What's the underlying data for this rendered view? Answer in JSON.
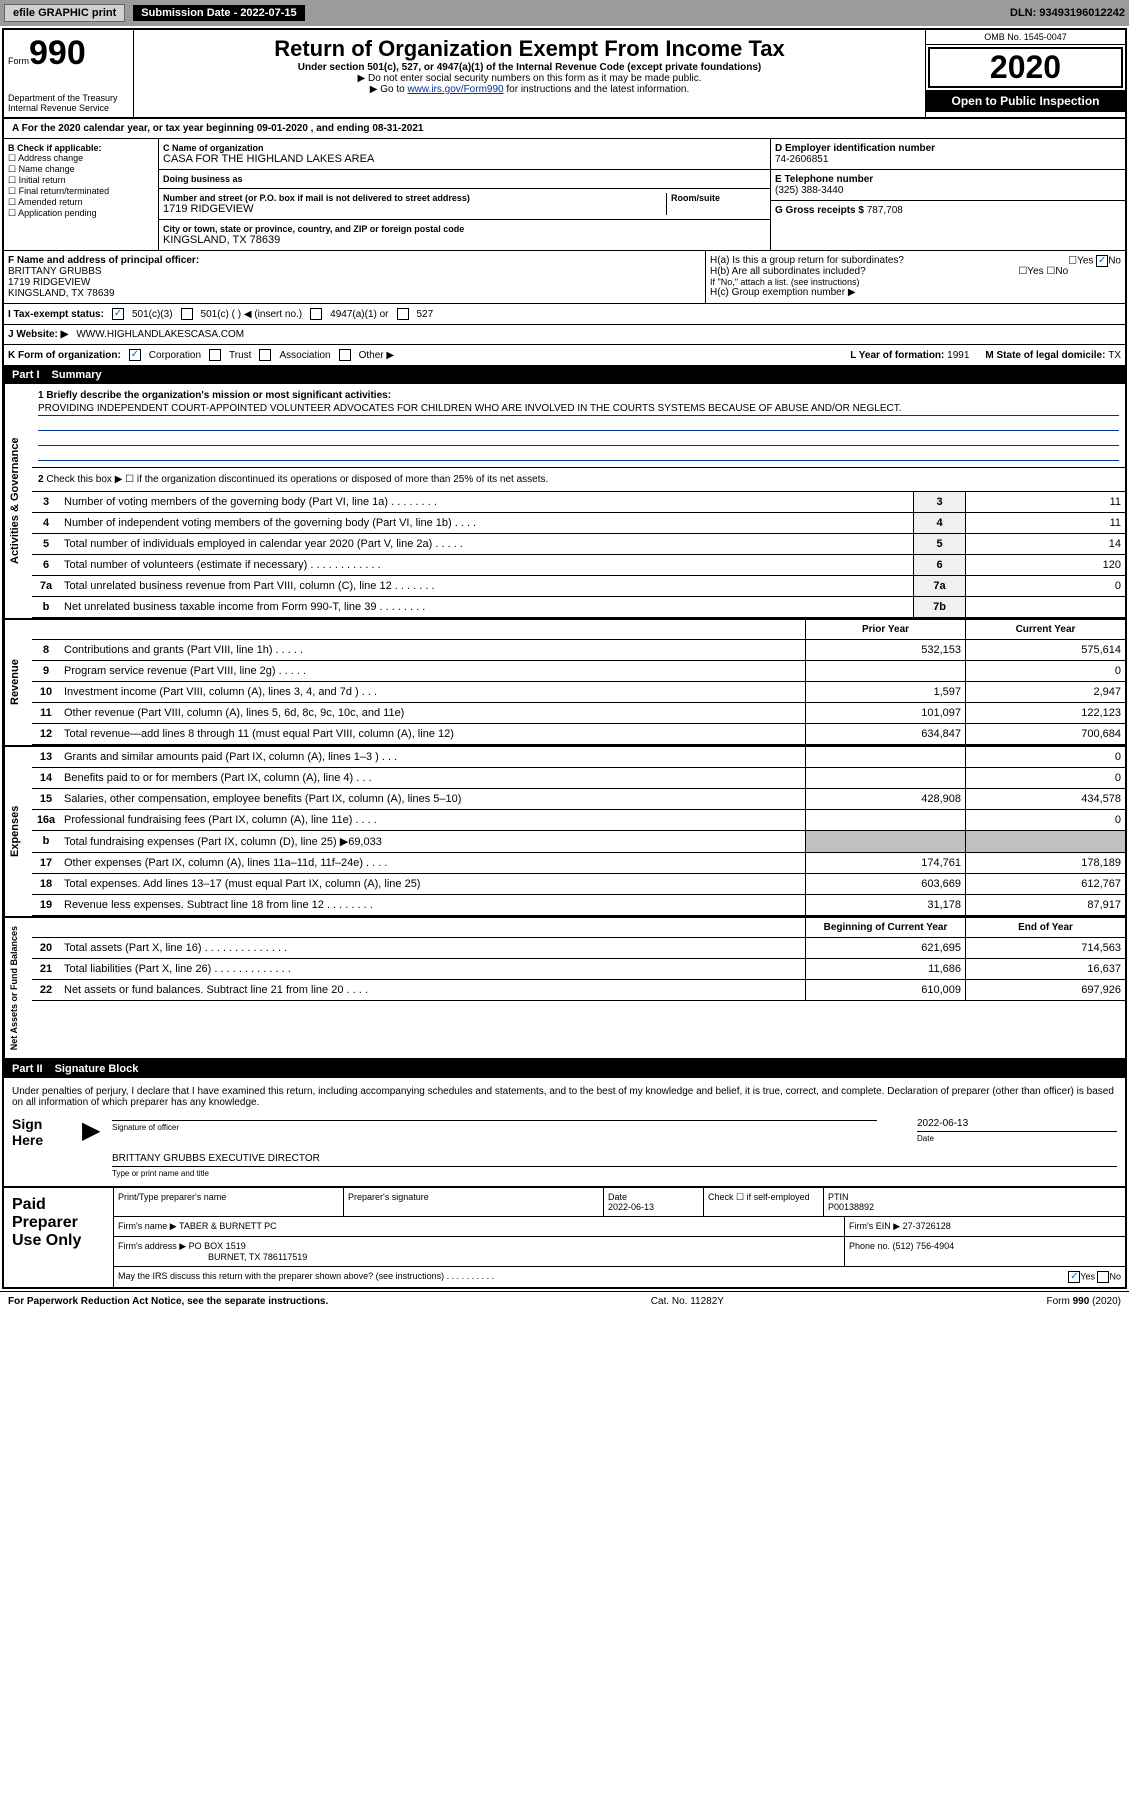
{
  "top": {
    "efile": "efile GRAPHIC print",
    "submission_label": "Submission Date - 2022-07-15",
    "dln": "DLN: 93493196012242"
  },
  "header": {
    "form_prefix": "Form",
    "form_no": "990",
    "dept": "Department of the Treasury\nInternal Revenue Service",
    "title": "Return of Organization Exempt From Income Tax",
    "subtitle": "Under section 501(c), 527, or 4947(a)(1) of the Internal Revenue Code (except private foundations)",
    "note1": "▶ Do not enter social security numbers on this form as it may be made public.",
    "note2_prefix": "▶ Go to ",
    "note2_link": "www.irs.gov/Form990",
    "note2_suffix": " for instructions and the latest information.",
    "omb": "OMB No. 1545-0047",
    "year": "2020",
    "open": "Open to Public Inspection"
  },
  "period": "A For the 2020 calendar year, or tax year beginning 09-01-2020    , and ending 08-31-2021",
  "section_b": {
    "label": "B Check if applicable:",
    "opts": [
      "Address change",
      "Name change",
      "Initial return",
      "Final return/terminated",
      "Amended return",
      "Application pending"
    ]
  },
  "section_c": {
    "name_label": "C Name of organization",
    "name": "CASA FOR THE HIGHLAND LAKES AREA",
    "dba_label": "Doing business as",
    "dba": "",
    "street_label": "Number and street (or P.O. box if mail is not delivered to street address)",
    "room_label": "Room/suite",
    "street": "1719 RIDGEVIEW",
    "city_label": "City or town, state or province, country, and ZIP or foreign postal code",
    "city": "KINGSLAND, TX  78639"
  },
  "section_d": {
    "ein_label": "D Employer identification number",
    "ein": "74-2606851",
    "phone_label": "E Telephone number",
    "phone": "(325) 388-3440",
    "gross_label": "G Gross receipts $ ",
    "gross": "787,708"
  },
  "section_f": {
    "label": "F  Name and address of principal officer:",
    "name": "BRITTANY GRUBBS",
    "addr1": "1719 RIDGEVIEW",
    "addr2": "KINGSLAND, TX  78639"
  },
  "section_h": {
    "ha": "H(a)  Is this a group return for subordinates?",
    "hb": "H(b)  Are all subordinates included?",
    "hb_note": "If \"No,\" attach a list. (see instructions)",
    "hc": "H(c)  Group exemption number ▶"
  },
  "tax_status_label": "I  Tax-exempt status:",
  "tax_501c3": "501(c)(3)",
  "tax_501c": "501(c) (  ) ◀ (insert no.)",
  "tax_4947": "4947(a)(1) or",
  "tax_527": "527",
  "website_label": "J  Website: ▶",
  "website": "WWW.HIGHLANDLAKESCASA.COM",
  "k_label": "K Form of organization:",
  "k_opts": [
    "Corporation",
    "Trust",
    "Association",
    "Other ▶"
  ],
  "l_label": "L Year of formation: ",
  "l_val": "1991",
  "m_label": "M State of legal domicile: ",
  "m_val": "TX",
  "part1": {
    "num": "Part I",
    "title": "Summary",
    "q1": "1  Briefly describe the organization's mission or most significant activities:",
    "q1_text": "PROVIDING INDEPENDENT COURT-APPOINTED VOLUNTEER ADVOCATES FOR CHILDREN WHO ARE INVOLVED IN THE COURTS SYSTEMS BECAUSE OF ABUSE AND/OR NEGLECT.",
    "q2": "Check this box ▶ ☐  if the organization discontinued its operations or disposed of more than 25% of its net assets.",
    "side_ag": "Activities & Governance",
    "side_rev": "Revenue",
    "side_exp": "Expenses",
    "side_net": "Net Assets or Fund Balances",
    "rows_ag": [
      {
        "n": "3",
        "t": "Number of voting members of the governing body (Part VI, line 1a)   .   .   .   .   .   .   .   .",
        "box": "3",
        "val": "11"
      },
      {
        "n": "4",
        "t": "Number of independent voting members of the governing body (Part VI, line 1b)   .   .   .   .",
        "box": "4",
        "val": "11"
      },
      {
        "n": "5",
        "t": "Total number of individuals employed in calendar year 2020 (Part V, line 2a)   .   .   .   .   .",
        "box": "5",
        "val": "14"
      },
      {
        "n": "6",
        "t": "Total number of volunteers (estimate if necessary)   .   .   .   .   .   .   .   .   .   .   .   .",
        "box": "6",
        "val": "120"
      },
      {
        "n": "7a",
        "t": "Total unrelated business revenue from Part VIII, column (C), line 12   .   .   .   .   .   .   .",
        "box": "7a",
        "val": "0"
      },
      {
        "n": "b",
        "t": "Net unrelated business taxable income from Form 990-T, line 39   .   .   .   .   .   .   .   .",
        "box": "7b",
        "val": ""
      }
    ],
    "header_py": "Prior Year",
    "header_cy": "Current Year",
    "rows_rev": [
      {
        "n": "8",
        "t": "Contributions and grants (Part VIII, line 1h)    .    .    .    .    .",
        "py": "532,153",
        "cy": "575,614"
      },
      {
        "n": "9",
        "t": "Program service revenue (Part VIII, line 2g)    .    .    .    .    .",
        "py": "",
        "cy": "0"
      },
      {
        "n": "10",
        "t": "Investment income (Part VIII, column (A), lines 3, 4, and 7d )    .    .    .",
        "py": "1,597",
        "cy": "2,947"
      },
      {
        "n": "11",
        "t": "Other revenue (Part VIII, column (A), lines 5, 6d, 8c, 9c, 10c, and 11e)",
        "py": "101,097",
        "cy": "122,123"
      },
      {
        "n": "12",
        "t": "Total revenue—add lines 8 through 11 (must equal Part VIII, column (A), line 12)",
        "py": "634,847",
        "cy": "700,684"
      }
    ],
    "rows_exp": [
      {
        "n": "13",
        "t": "Grants and similar amounts paid (Part IX, column (A), lines 1–3 )   .    .    .",
        "py": "",
        "cy": "0"
      },
      {
        "n": "14",
        "t": "Benefits paid to or for members (Part IX, column (A), line 4)    .    .    .",
        "py": "",
        "cy": "0"
      },
      {
        "n": "15",
        "t": "Salaries, other compensation, employee benefits (Part IX, column (A), lines 5–10)",
        "py": "428,908",
        "cy": "434,578"
      },
      {
        "n": "16a",
        "t": "Professional fundraising fees (Part IX, column (A), line 11e)    .    .    .    .",
        "py": "",
        "cy": "0"
      },
      {
        "n": "b",
        "t": "Total fundraising expenses (Part IX, column (D), line 25) ▶69,033",
        "py": "GRAY",
        "cy": "GRAY"
      },
      {
        "n": "17",
        "t": "Other expenses (Part IX, column (A), lines 11a–11d, 11f–24e)    .    .    .    .",
        "py": "174,761",
        "cy": "178,189"
      },
      {
        "n": "18",
        "t": "Total expenses. Add lines 13–17 (must equal Part IX, column (A), line 25)",
        "py": "603,669",
        "cy": "612,767"
      },
      {
        "n": "19",
        "t": "Revenue less expenses. Subtract line 18 from line 12  .   .   .   .   .   .   .   .",
        "py": "31,178",
        "cy": "87,917"
      }
    ],
    "header_bcy": "Beginning of Current Year",
    "header_eoy": "End of Year",
    "rows_net": [
      {
        "n": "20",
        "t": "Total assets (Part X, line 16)   .   .   .   .   .   .   .   .   .   .   .   .   .   .",
        "py": "621,695",
        "cy": "714,563"
      },
      {
        "n": "21",
        "t": "Total liabilities (Part X, line 26)   .   .   .   .   .   .   .   .   .   .   .   .   .",
        "py": "11,686",
        "cy": "16,637"
      },
      {
        "n": "22",
        "t": "Net assets or fund balances. Subtract line 21 from line 20   .   .   .   .",
        "py": "610,009",
        "cy": "697,926"
      }
    ]
  },
  "part2": {
    "num": "Part II",
    "title": "Signature Block",
    "penalty": "Under penalties of perjury, I declare that I have examined this return, including accompanying schedules and statements, and to the best of my knowledge and belief, it is true, correct, and complete. Declaration of preparer (other than officer) is based on all information of which preparer has any knowledge.",
    "sign_here": "Sign Here",
    "sig_officer_label": "Signature of officer",
    "sig_date": "2022-06-13",
    "sig_date_label": "Date",
    "sig_name": "BRITTANY GRUBBS  EXECUTIVE DIRECTOR",
    "sig_name_label": "Type or print name and title",
    "paid_label": "Paid Preparer Use Only",
    "prep_name_label": "Print/Type preparer's name",
    "prep_sig_label": "Preparer's signature",
    "prep_date_label": "Date",
    "prep_date": "2022-06-13",
    "prep_check_label": "Check ☐ if self-employed",
    "ptin_label": "PTIN",
    "ptin": "P00138892",
    "firm_name_label": "Firm's name    ▶",
    "firm_name": "TABER & BURNETT PC",
    "firm_ein_label": "Firm's EIN ▶",
    "firm_ein": "27-3726128",
    "firm_addr_label": "Firm's address ▶",
    "firm_addr1": "PO BOX 1519",
    "firm_addr2": "BURNET, TX  786117519",
    "firm_phone_label": "Phone no. ",
    "firm_phone": "(512) 756-4904",
    "may_discuss": "May the IRS discuss this return with the preparer shown above? (see instructions)    .    .    .    .    .    .    .    .    .    ."
  },
  "footer": {
    "left": "For Paperwork Reduction Act Notice, see the separate instructions.",
    "mid": "Cat. No. 11282Y",
    "right": "Form 990 (2020)"
  }
}
